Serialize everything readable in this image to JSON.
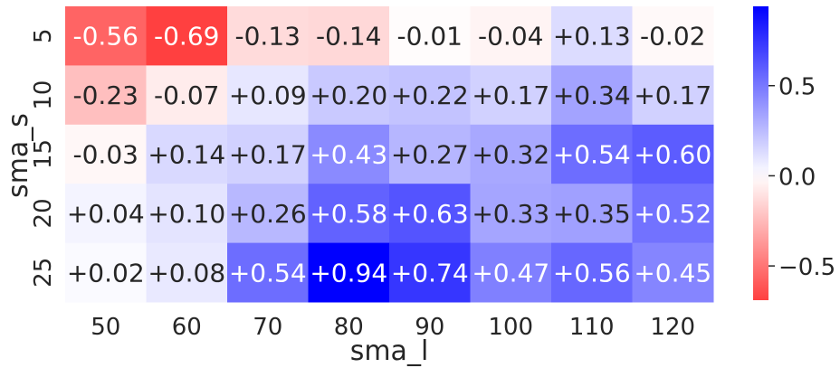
{
  "chart_data": {
    "type": "heatmap",
    "title": "",
    "xlabel": "sma_l",
    "ylabel": "sma_s",
    "x_categories": [
      "50",
      "60",
      "70",
      "80",
      "90",
      "100",
      "110",
      "120"
    ],
    "y_categories": [
      "5",
      "10",
      "15",
      "20",
      "25"
    ],
    "values": [
      [
        -0.56,
        -0.69,
        -0.13,
        -0.14,
        -0.01,
        -0.04,
        0.13,
        -0.02
      ],
      [
        -0.23,
        -0.07,
        0.09,
        0.2,
        0.22,
        0.17,
        0.34,
        0.17
      ],
      [
        -0.03,
        0.14,
        0.17,
        0.43,
        0.27,
        0.32,
        0.54,
        0.6
      ],
      [
        0.04,
        0.1,
        0.26,
        0.58,
        0.63,
        0.33,
        0.35,
        0.52
      ],
      [
        0.02,
        0.08,
        0.54,
        0.94,
        0.74,
        0.47,
        0.56,
        0.45
      ]
    ],
    "value_format": "+0.2f",
    "colormap": "bwr_r",
    "color_negative": "#ff0000",
    "color_neutral": "#ffffff",
    "color_positive": "#0000ff",
    "vmin": -0.69,
    "vmax": 0.94,
    "colorbar": {
      "ticks": [
        0.5,
        0.0,
        -0.5
      ],
      "tick_labels": [
        "0.5",
        "0.0",
        "−0.5"
      ]
    }
  }
}
